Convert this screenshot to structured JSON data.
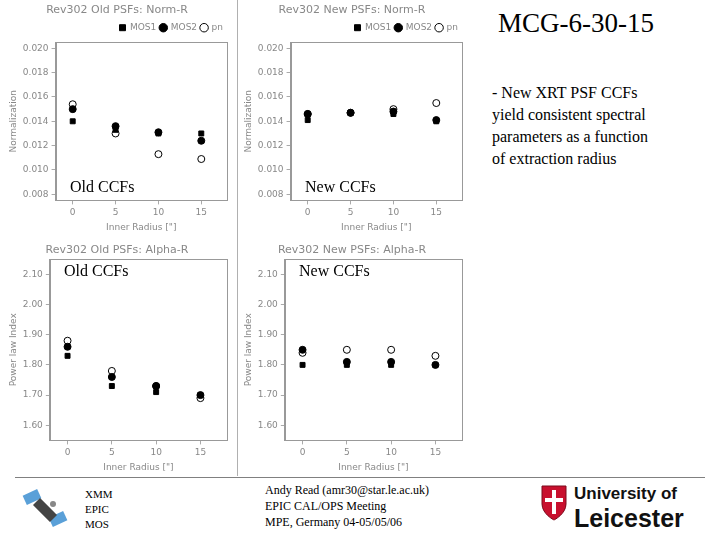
{
  "page": {
    "title": "MCG-6-30-15",
    "bullet_lines": [
      "- New XRT PSF CCFs",
      "yield consistent spectral",
      "parameters as a function",
      "of extraction radius"
    ],
    "footer_left": [
      "XMM",
      "EPIC",
      "MOS"
    ],
    "footer_center": [
      "Andy Read (amr30@star.le.ac.uk)",
      "EPIC CAL/OPS Meeting",
      "MPE, Germany 04-05/05/06"
    ],
    "logo": [
      "University of",
      "Leicester"
    ]
  },
  "chart_data": [
    {
      "type": "scatter",
      "title": "Rev302 Old PSFs: Norm-R",
      "annotation": "Old CCFs",
      "x_label": "Inner Radius [\"]",
      "y_label": "Normalization",
      "x": [
        0,
        5,
        10,
        15
      ],
      "xlim": [
        -2,
        18
      ],
      "xticks": [
        0,
        5,
        10,
        15
      ],
      "ylim": [
        0.0075,
        0.0205
      ],
      "yticks": [
        {
          "value": 0.008,
          "label": "0.008"
        },
        {
          "value": 0.01,
          "label": "0.010"
        },
        {
          "value": 0.012,
          "label": "0.012"
        },
        {
          "value": 0.014,
          "label": "0.014"
        },
        {
          "value": 0.016,
          "label": "0.016"
        },
        {
          "value": 0.018,
          "label": "0.018"
        },
        {
          "value": 0.02,
          "label": "0.020"
        }
      ],
      "grid": false,
      "legend": "upper right",
      "series": [
        {
          "name": "MOS1",
          "color": "#000000",
          "marker": "square",
          "values": [
            0.014,
            0.0133,
            0.013,
            0.013
          ]
        },
        {
          "name": "MOS2",
          "color": "#000000",
          "marker": "circle",
          "values": [
            0.015,
            0.0136,
            0.0131,
            0.0124
          ]
        },
        {
          "name": "pn",
          "color": "#000000",
          "marker": "open_circle",
          "values": [
            0.0154,
            0.013,
            0.0113,
            0.0109
          ]
        }
      ]
    },
    {
      "type": "scatter",
      "title": "Rev302 New PSFs: Norm-R",
      "annotation": "New CCFs",
      "x_label": "Inner Radius [\"]",
      "y_label": "Normalization",
      "x": [
        0,
        5,
        10,
        15
      ],
      "xlim": [
        -2,
        18
      ],
      "xticks": [
        0,
        5,
        10,
        15
      ],
      "ylim": [
        0.0075,
        0.0205
      ],
      "yticks": [
        {
          "value": 0.008,
          "label": "0.008"
        },
        {
          "value": 0.01,
          "label": "0.010"
        },
        {
          "value": 0.012,
          "label": "0.012"
        },
        {
          "value": 0.014,
          "label": "0.014"
        },
        {
          "value": 0.016,
          "label": "0.016"
        },
        {
          "value": 0.018,
          "label": "0.018"
        },
        {
          "value": 0.02,
          "label": "0.020"
        }
      ],
      "grid": false,
      "legend": "upper right",
      "series": [
        {
          "name": "MOS1",
          "color": "#000000",
          "marker": "square",
          "values": [
            0.0141,
            0.0147,
            0.0146,
            0.014
          ]
        },
        {
          "name": "MOS2",
          "color": "#000000",
          "marker": "circle",
          "values": [
            0.0146,
            0.0147,
            0.0148,
            0.0141
          ]
        },
        {
          "name": "pn",
          "color": "#000000",
          "marker": "open_circle",
          "values": [
            0.0146,
            0.0147,
            0.015,
            0.0155
          ]
        }
      ]
    },
    {
      "type": "scatter",
      "title": "Rev302 Old PSFs: Alpha-R",
      "annotation": "Old CCFs",
      "x_label": "Inner Radius [\"]",
      "y_label": "Power law Index",
      "x": [
        0,
        5,
        10,
        15
      ],
      "xlim": [
        -2,
        18
      ],
      "xticks": [
        0,
        5,
        10,
        15
      ],
      "ylim": [
        1.55,
        2.15
      ],
      "yticks": [
        {
          "value": 1.6,
          "label": "1.60"
        },
        {
          "value": 1.7,
          "label": "1.70"
        },
        {
          "value": 1.8,
          "label": "1.80"
        },
        {
          "value": 1.9,
          "label": "1.90"
        },
        {
          "value": 2.0,
          "label": "2.00"
        },
        {
          "value": 2.1,
          "label": "2.10"
        }
      ],
      "grid": false,
      "series": [
        {
          "name": "MOS1",
          "color": "#000000",
          "marker": "square",
          "values": [
            1.83,
            1.73,
            1.71,
            1.7
          ]
        },
        {
          "name": "MOS2",
          "color": "#000000",
          "marker": "circle",
          "values": [
            1.86,
            1.76,
            1.73,
            1.7
          ]
        },
        {
          "name": "pn",
          "color": "#000000",
          "marker": "open_circle",
          "values": [
            1.88,
            1.78,
            1.73,
            1.69
          ]
        }
      ]
    },
    {
      "type": "scatter",
      "title": "Rev302 New PSFs: Alpha-R",
      "annotation": "New CCFs",
      "x_label": "Inner Radius [\"]",
      "y_label": "Power law Index",
      "x": [
        0,
        5,
        10,
        15
      ],
      "xlim": [
        -2,
        18
      ],
      "xticks": [
        0,
        5,
        10,
        15
      ],
      "ylim": [
        1.55,
        2.15
      ],
      "yticks": [
        {
          "value": 1.6,
          "label": "1.60"
        },
        {
          "value": 1.7,
          "label": "1.70"
        },
        {
          "value": 1.8,
          "label": "1.80"
        },
        {
          "value": 1.9,
          "label": "1.90"
        },
        {
          "value": 2.0,
          "label": "2.00"
        },
        {
          "value": 2.1,
          "label": "2.10"
        }
      ],
      "grid": false,
      "series": [
        {
          "name": "MOS1",
          "color": "#000000",
          "marker": "square",
          "values": [
            1.8,
            1.8,
            1.8,
            1.8
          ]
        },
        {
          "name": "MOS2",
          "color": "#000000",
          "marker": "circle",
          "values": [
            1.85,
            1.81,
            1.81,
            1.8
          ]
        },
        {
          "name": "pn",
          "color": "#000000",
          "marker": "open_circle",
          "values": [
            1.84,
            1.85,
            1.85,
            1.83
          ]
        }
      ]
    }
  ]
}
